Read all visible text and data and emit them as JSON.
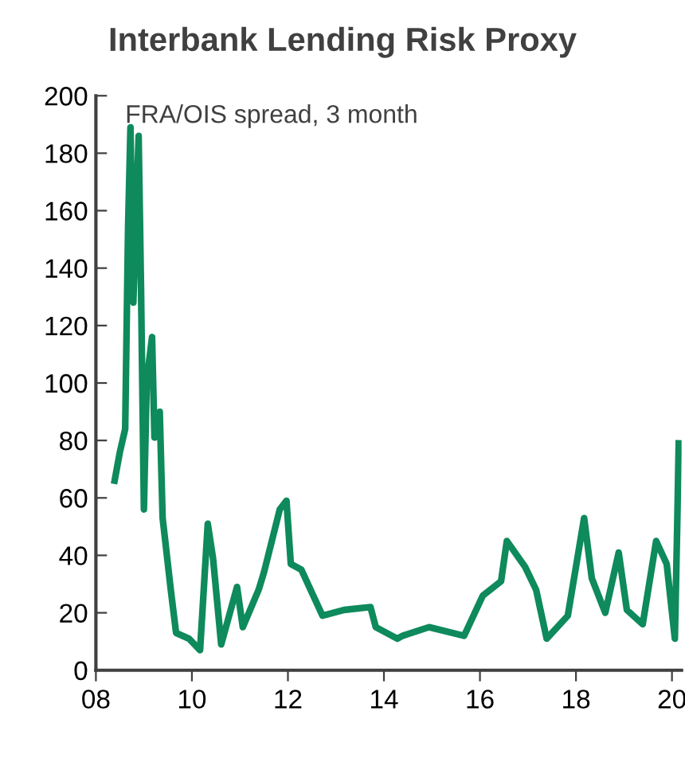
{
  "chart_data": {
    "type": "line",
    "title": "Interbank Lending Risk Proxy",
    "subtitle": "FRA/OIS spread, 3 month",
    "x": [
      2008.39,
      2008.5,
      2008.61,
      2008.67,
      2008.72,
      2008.78,
      2008.89,
      2008.94,
      2009.0,
      2009.06,
      2009.17,
      2009.22,
      2009.33,
      2009.39,
      2009.56,
      2009.67,
      2009.94,
      2010.17,
      2010.33,
      2010.44,
      2010.61,
      2010.94,
      2011.06,
      2011.39,
      2011.5,
      2011.83,
      2011.97,
      2012.06,
      2012.28,
      2012.72,
      2013.17,
      2013.72,
      2013.83,
      2014.28,
      2014.39,
      2014.94,
      2015.67,
      2016.06,
      2016.44,
      2016.56,
      2016.94,
      2017.17,
      2017.39,
      2017.83,
      2018.17,
      2018.33,
      2018.61,
      2018.89,
      2019.06,
      2019.39,
      2019.67,
      2019.89,
      2020.06,
      2020.11,
      2020.14
    ],
    "series": [
      {
        "color": "#0e8a5c",
        "values": [
          66,
          76,
          84,
          154,
          189,
          128,
          186,
          133,
          56,
          101,
          116,
          81,
          90,
          53,
          28,
          13,
          11,
          7,
          51,
          39,
          9,
          29,
          15,
          28,
          34,
          56,
          59,
          37,
          35,
          19,
          21,
          22,
          15,
          11,
          12,
          15,
          12,
          26,
          31,
          45,
          36,
          28,
          11,
          19,
          53,
          32,
          20,
          41,
          21,
          16,
          45,
          37,
          11,
          51,
          79
        ]
      }
    ],
    "xlim": [
      2008,
      2020.2
    ],
    "xticks": [
      {
        "value": 2008,
        "label": "08"
      },
      {
        "value": 2010,
        "label": "10"
      },
      {
        "value": 2012,
        "label": "12"
      },
      {
        "value": 2014,
        "label": "14"
      },
      {
        "value": 2016,
        "label": "16"
      },
      {
        "value": 2018,
        "label": "18"
      },
      {
        "value": 2020,
        "label": "20"
      }
    ],
    "ylim": [
      0,
      200
    ],
    "yticks": [
      0,
      20,
      40,
      60,
      80,
      100,
      120,
      140,
      160,
      180,
      200
    ],
    "grid": false,
    "line_style": "solid"
  }
}
